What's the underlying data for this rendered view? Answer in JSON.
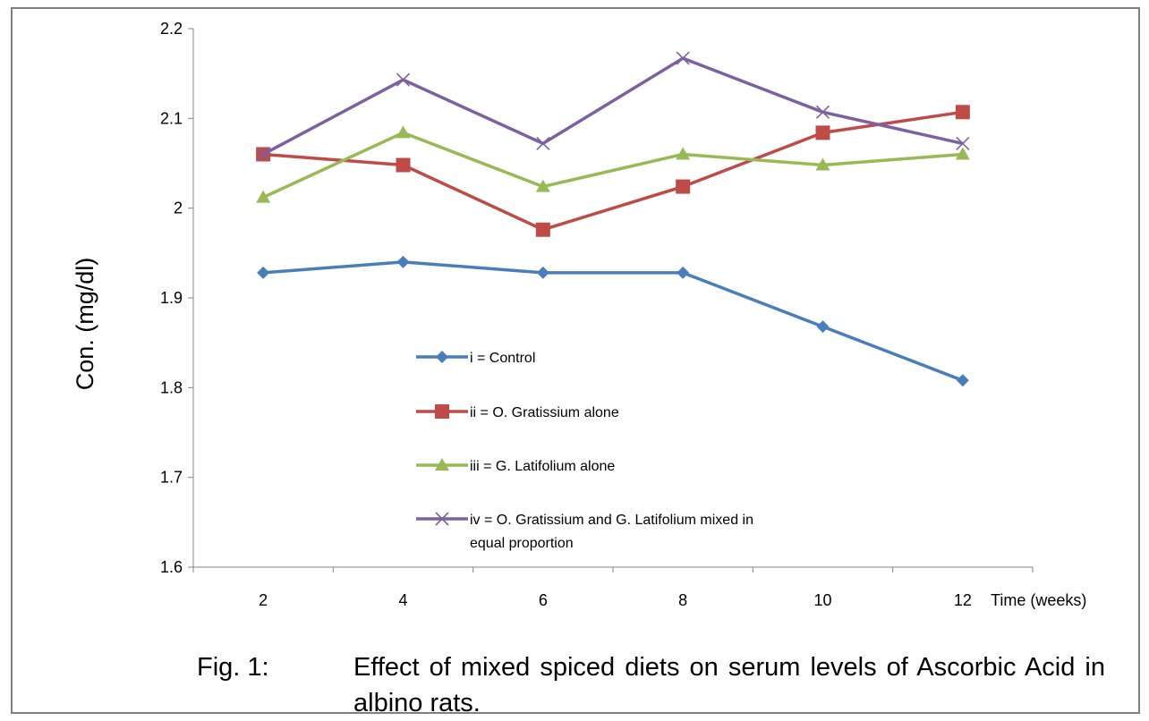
{
  "chart_data": {
    "type": "line",
    "x": [
      2,
      4,
      6,
      8,
      10,
      12
    ],
    "categories": [
      "2",
      "4",
      "6",
      "8",
      "10",
      "12"
    ],
    "xlabel": "Time (weeks)",
    "ylabel": "Con. (mg/dl)",
    "ylim": [
      1.6,
      2.2
    ],
    "yticks": [
      "1.6",
      "1.7",
      "1.8",
      "1.9",
      "2",
      "2.1",
      "2.2"
    ],
    "grid": false,
    "legend_position": "center",
    "series": [
      {
        "name": "i = Control",
        "marker": "diamond",
        "color": "#4a7ebb",
        "values": [
          1.928,
          1.94,
          1.928,
          1.928,
          1.868,
          1.808
        ]
      },
      {
        "name": "ii = O. Gratissium alone",
        "marker": "square",
        "color": "#be4b48",
        "values": [
          2.06,
          2.048,
          1.976,
          2.024,
          2.084,
          2.107
        ]
      },
      {
        "name": "iii = G. Latifolium alone",
        "marker": "triangle",
        "color": "#98b954",
        "values": [
          2.012,
          2.084,
          2.024,
          2.06,
          2.048,
          2.06
        ]
      },
      {
        "name": "iv = O. Gratissium and G. Latifolium mixed in equal proportion",
        "name_lines": [
          "iv = O. Gratissium and G. Latifolium mixed in",
          "equal proportion"
        ],
        "marker": "x",
        "color": "#7d60a0",
        "values": [
          2.06,
          2.143,
          2.072,
          2.167,
          2.107,
          2.072
        ]
      }
    ]
  },
  "caption": {
    "label": "Fig. 1:",
    "text": "Effect of mixed spiced diets on serum levels of Ascorbic Acid in albino rats."
  }
}
